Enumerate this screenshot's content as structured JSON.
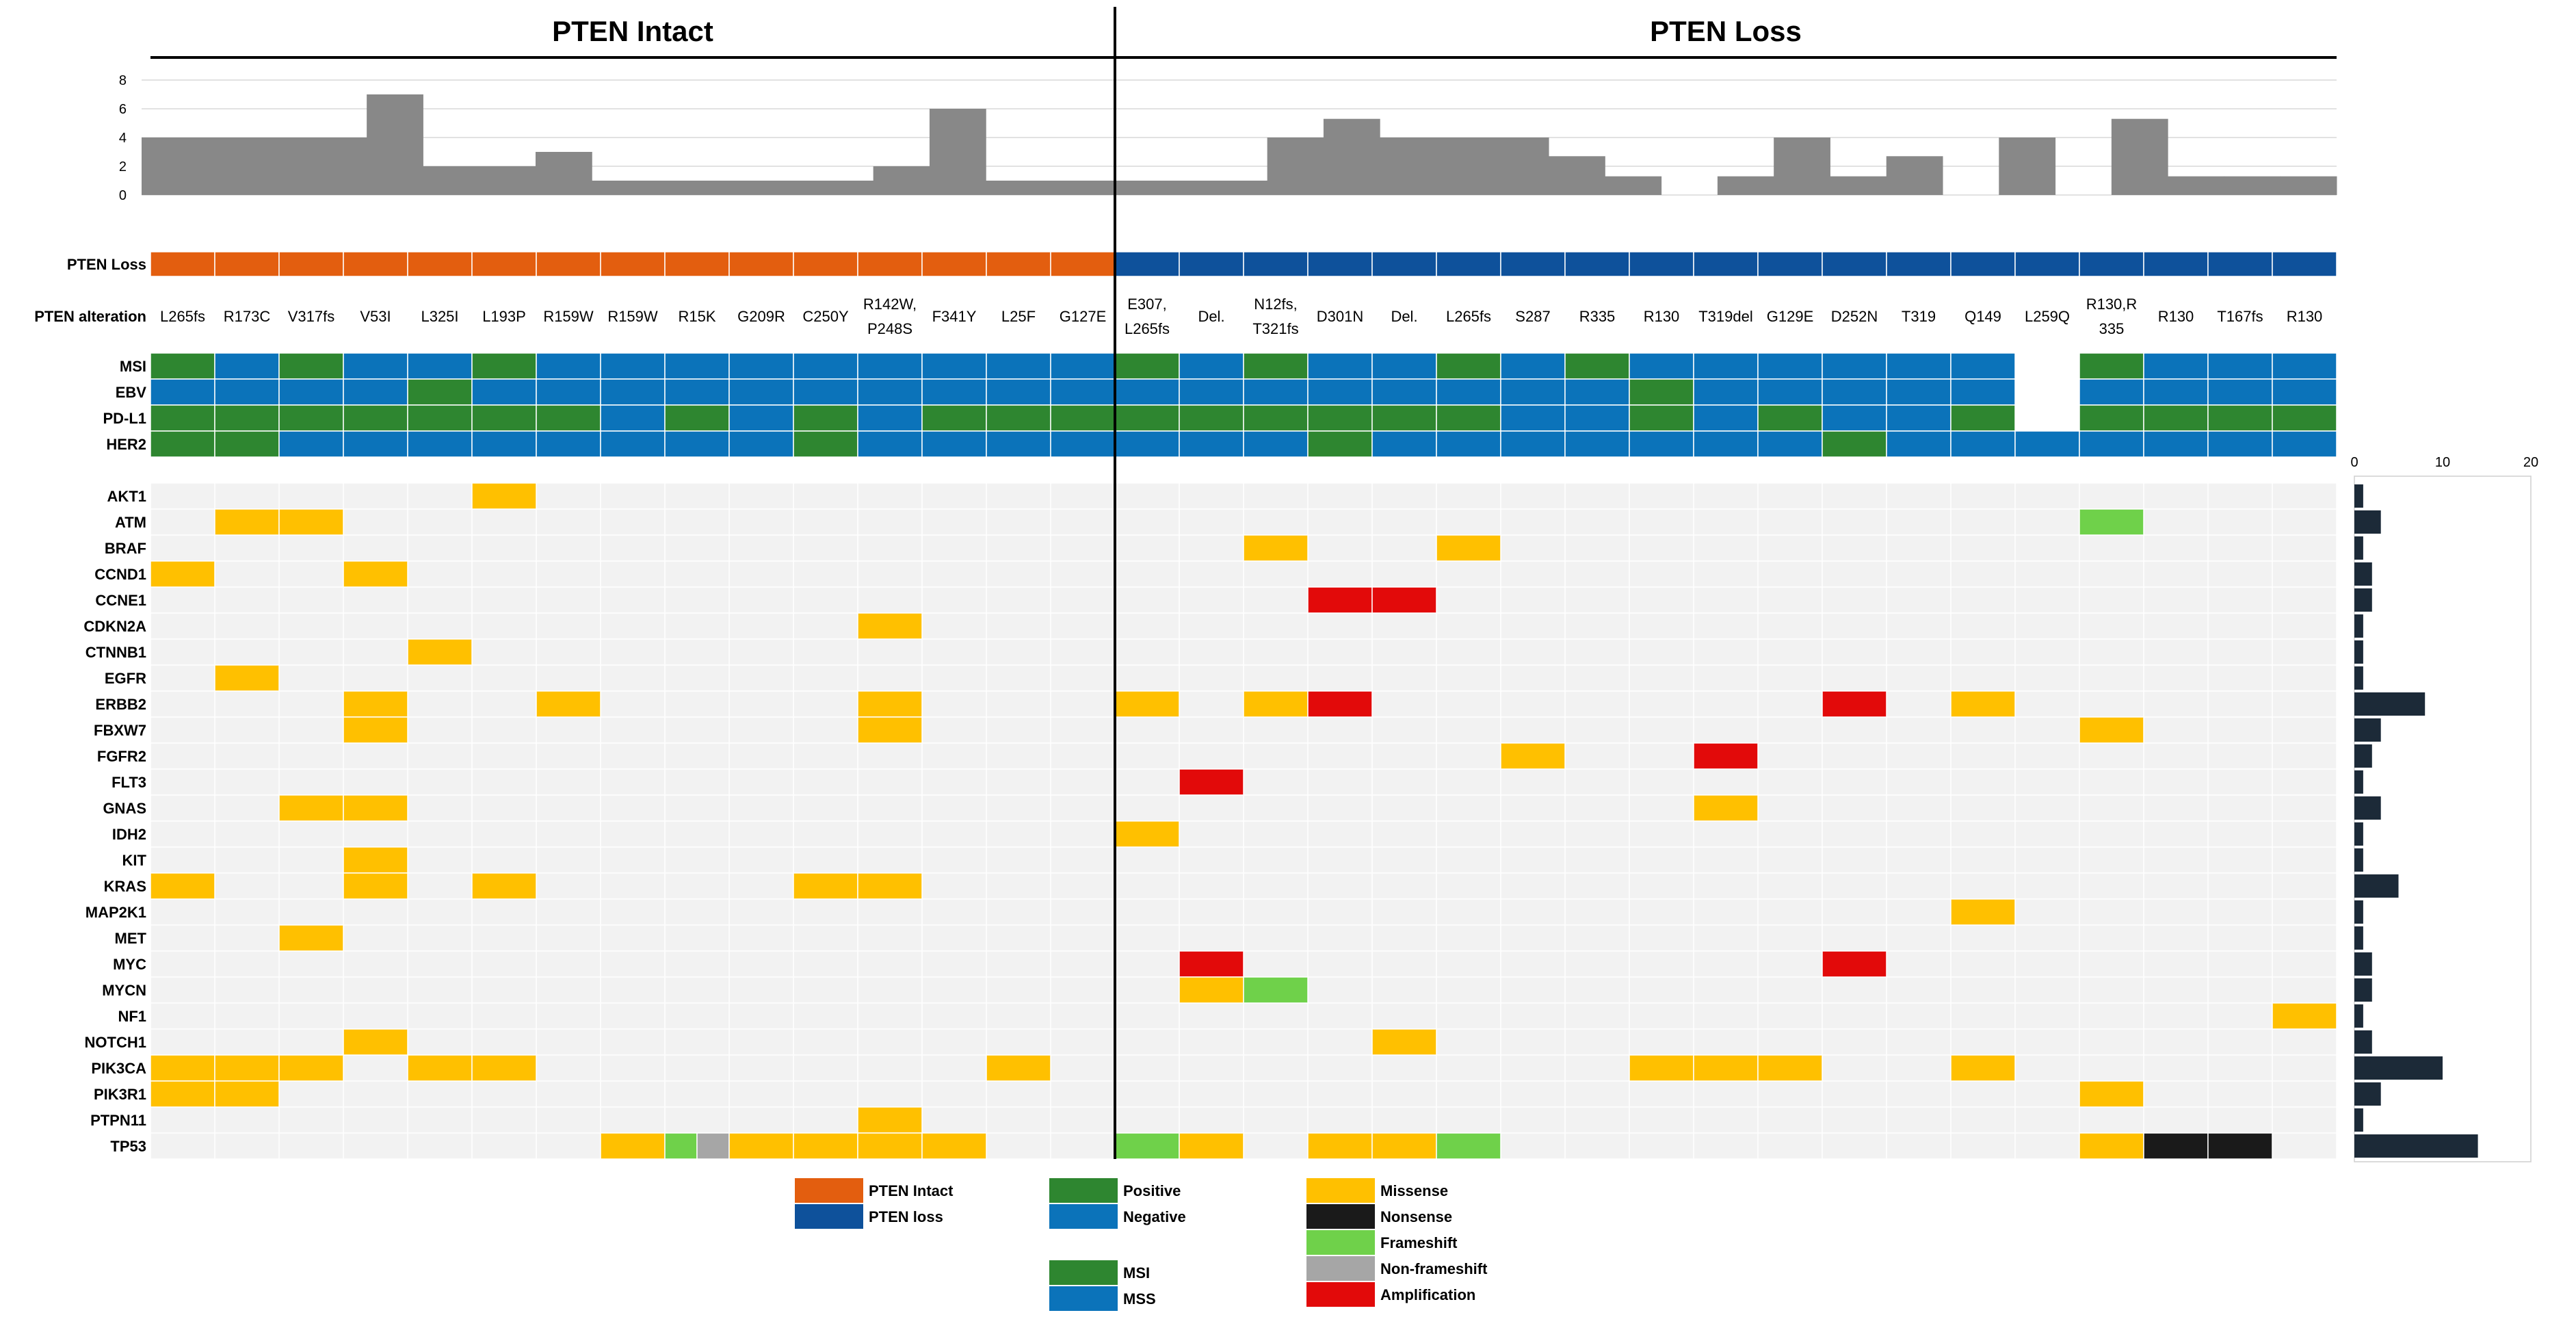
{
  "groups": [
    {
      "label": "PTEN Intact"
    },
    {
      "label": "PTEN Loss"
    }
  ],
  "colors": {
    "pten_intact": "#E35E0F",
    "pten_loss": "#0E519B",
    "positive": "#2E8630",
    "negative": "#0B73BA",
    "missense": "#FFC000",
    "nonsense": "#1A1A1A",
    "frameshift": "#6FD14A",
    "nonframeshift": "#A6A6A6",
    "amplification": "#E20A0A",
    "bg": "#F2F2F2",
    "bar": "#888888",
    "count_bar": "#1C2A38"
  },
  "chart_data": {
    "type": "heatmap",
    "title": "",
    "top_bar": {
      "ylim": [
        0,
        8
      ],
      "yticks": [
        "0",
        "2",
        "4",
        "6",
        "8"
      ],
      "values": [
        4,
        4,
        4,
        4,
        7,
        2,
        2,
        3,
        1,
        1,
        1,
        1,
        1,
        2,
        6,
        1,
        1,
        1,
        1,
        1,
        4,
        5.3,
        4,
        4,
        4,
        2.7,
        1.3,
        0,
        1.3,
        4,
        1.3,
        2.7,
        0,
        4,
        0,
        5.3,
        1.3,
        1.3,
        1.3
      ]
    },
    "row_labels": {
      "pten": "PTEN Loss",
      "alteration": "PTEN alteration",
      "msi": "MSI",
      "ebv": "EBV",
      "pdl1": "PD-L1",
      "her2": "HER2"
    },
    "pten_status": [
      "intact",
      "intact",
      "intact",
      "intact",
      "intact",
      "intact",
      "intact",
      "intact",
      "intact",
      "intact",
      "intact",
      "intact",
      "intact",
      "intact",
      "intact",
      "intact",
      "intact",
      "loss",
      "loss",
      "loss",
      "loss",
      "loss",
      "loss",
      "loss",
      "loss",
      "loss",
      "loss",
      "loss",
      "loss",
      "loss",
      "loss",
      "loss",
      "loss",
      "loss",
      "loss",
      "loss",
      "loss",
      "loss",
      "loss"
    ],
    "alterations": [
      [
        "L265fs"
      ],
      [
        "R173C"
      ],
      [
        "V317fs"
      ],
      [
        "V53I"
      ],
      [
        "L325I"
      ],
      [
        "L193P"
      ],
      [
        "R159W"
      ],
      [
        "R159W"
      ],
      [
        "R15K"
      ],
      [
        "G209R"
      ],
      [
        "C250Y"
      ],
      [
        "R142W,",
        "P248S"
      ],
      [
        "F341Y"
      ],
      [
        "L25F"
      ],
      [
        "G127E"
      ],
      [
        "E307,",
        "L265fs"
      ],
      [
        "Del."
      ],
      [
        "N12fs,",
        "T321fs"
      ],
      [
        "D301N"
      ],
      [
        "Del."
      ],
      [
        "L265fs"
      ],
      [
        "S287"
      ],
      [
        "R335"
      ],
      [
        "R130"
      ],
      [
        "T319del"
      ],
      [
        "G129E"
      ],
      [
        "D252N"
      ],
      [
        "T319"
      ],
      [
        "Q149"
      ],
      [
        "L259Q"
      ],
      [
        "R130,R",
        "335"
      ],
      [
        "R130"
      ],
      [
        "T167fs"
      ],
      [
        "R130"
      ]
    ],
    "alteration_cols": [
      0,
      1,
      2,
      3,
      4,
      5,
      6,
      7,
      8,
      9,
      10,
      11,
      12,
      13,
      14,
      15,
      16,
      17,
      18,
      19,
      20,
      21,
      22,
      23,
      24,
      25,
      26,
      27,
      28,
      29,
      30,
      31,
      32,
      33
    ],
    "msi": [
      "P",
      "N",
      "P",
      "N",
      "N",
      "P",
      "N",
      "N",
      "N",
      "N",
      "N",
      "N",
      "N",
      "N",
      "N",
      "P",
      "N",
      "P",
      "N",
      "N",
      "P",
      "N",
      "P",
      "N",
      "N",
      "N",
      "N",
      "N",
      "N",
      "X",
      "P",
      "N",
      "N",
      "N"
    ],
    "ebv": [
      "N",
      "N",
      "N",
      "N",
      "P",
      "N",
      "N",
      "N",
      "N",
      "N",
      "N",
      "N",
      "N",
      "N",
      "N",
      "N",
      "N",
      "N",
      "N",
      "N",
      "N",
      "N",
      "N",
      "P",
      "N",
      "N",
      "N",
      "N",
      "N",
      "X",
      "N",
      "N",
      "N",
      "N"
    ],
    "pdl1": [
      "P",
      "P",
      "P",
      "P",
      "P",
      "P",
      "P",
      "N",
      "P",
      "N",
      "P",
      "N",
      "P",
      "P",
      "P",
      "P",
      "P",
      "P",
      "P",
      "P",
      "P",
      "N",
      "N",
      "P",
      "N",
      "P",
      "N",
      "N",
      "P",
      "X",
      "P",
      "P",
      "P",
      "P"
    ],
    "her2": [
      "P",
      "P",
      "N",
      "N",
      "N",
      "N",
      "N",
      "N",
      "N",
      "N",
      "P",
      "N",
      "N",
      "N",
      "N",
      "N",
      "N",
      "N",
      "P",
      "N",
      "N",
      "N",
      "N",
      "N",
      "N",
      "N",
      "P",
      "N",
      "N",
      "N",
      "N",
      "N",
      "N",
      "N"
    ],
    "genes": [
      "AKT1",
      "ATM",
      "BRAF",
      "CCND1",
      "CCNE1",
      "CDKN2A",
      "CTNNB1",
      "EGFR",
      "ERBB2",
      "FBXW7",
      "FGFR2",
      "FLT3",
      "GNAS",
      "IDH2",
      "KIT",
      "KRAS",
      "MAP2K1",
      "MET",
      "MYC",
      "MYCN",
      "NF1",
      "NOTCH1",
      "PIK3CA",
      "PIK3R1",
      "PTPN11",
      "TP53"
    ],
    "gene_counts": [
      1,
      3,
      1,
      2,
      2,
      1,
      1,
      1,
      8,
      3,
      2,
      1,
      3,
      1,
      1,
      5,
      1,
      1,
      2,
      2,
      1,
      2,
      10,
      3,
      1,
      14
    ],
    "count_axis": {
      "ticks": [
        "0",
        "10",
        "20"
      ],
      "max": 20
    },
    "mutations": [
      [
        0,
        5,
        "M"
      ],
      [
        1,
        1,
        "M"
      ],
      [
        1,
        2,
        "M"
      ],
      [
        1,
        30,
        "F"
      ],
      [
        2,
        17,
        "M"
      ],
      [
        2,
        20,
        "M"
      ],
      [
        3,
        0,
        "M"
      ],
      [
        3,
        3,
        "M"
      ],
      [
        4,
        18,
        "A"
      ],
      [
        4,
        19,
        "A"
      ],
      [
        5,
        11,
        "M"
      ],
      [
        6,
        4,
        "M"
      ],
      [
        7,
        1,
        "M"
      ],
      [
        8,
        3,
        "M"
      ],
      [
        8,
        6,
        "M"
      ],
      [
        8,
        11,
        "M"
      ],
      [
        8,
        15,
        "M"
      ],
      [
        8,
        17,
        "M"
      ],
      [
        8,
        18,
        "A"
      ],
      [
        8,
        26,
        "A"
      ],
      [
        8,
        28,
        "M"
      ],
      [
        9,
        3,
        "M"
      ],
      [
        9,
        11,
        "M"
      ],
      [
        9,
        30,
        "M"
      ],
      [
        10,
        21,
        "M"
      ],
      [
        10,
        24,
        "A"
      ],
      [
        11,
        16,
        "A"
      ],
      [
        12,
        2,
        "M"
      ],
      [
        12,
        3,
        "M"
      ],
      [
        12,
        24,
        "M"
      ],
      [
        13,
        15,
        "M"
      ],
      [
        14,
        3,
        "M"
      ],
      [
        15,
        0,
        "M"
      ],
      [
        15,
        3,
        "M"
      ],
      [
        15,
        5,
        "M"
      ],
      [
        15,
        10,
        "M"
      ],
      [
        15,
        11,
        "M"
      ],
      [
        16,
        28,
        "M"
      ],
      [
        17,
        2,
        "M"
      ],
      [
        18,
        16,
        "A"
      ],
      [
        18,
        26,
        "A"
      ],
      [
        19,
        16,
        "M"
      ],
      [
        19,
        17,
        "F"
      ],
      [
        20,
        33,
        "M"
      ],
      [
        21,
        3,
        "M"
      ],
      [
        21,
        19,
        "M"
      ],
      [
        22,
        0,
        "M"
      ],
      [
        22,
        1,
        "M"
      ],
      [
        22,
        2,
        "M"
      ],
      [
        22,
        4,
        "M"
      ],
      [
        22,
        5,
        "M"
      ],
      [
        22,
        13,
        "M"
      ],
      [
        22,
        23,
        "M"
      ],
      [
        22,
        24,
        "M"
      ],
      [
        22,
        25,
        "M"
      ],
      [
        22,
        28,
        "M"
      ],
      [
        23,
        0,
        "M"
      ],
      [
        23,
        1,
        "M"
      ],
      [
        23,
        30,
        "M"
      ],
      [
        24,
        11,
        "M"
      ],
      [
        25,
        7,
        "M"
      ],
      [
        25,
        8,
        "F"
      ],
      [
        25,
        8.5,
        "N2"
      ],
      [
        25,
        9,
        "M"
      ],
      [
        25,
        10,
        "M"
      ],
      [
        25,
        11,
        "M"
      ],
      [
        25,
        12,
        "M"
      ],
      [
        25,
        15,
        "F"
      ],
      [
        25,
        16,
        "M"
      ],
      [
        25,
        18,
        "M"
      ],
      [
        25,
        19,
        "M"
      ],
      [
        25,
        20,
        "F"
      ],
      [
        25,
        30,
        "M"
      ],
      [
        25,
        31,
        "B"
      ],
      [
        25,
        32,
        "B"
      ]
    ]
  },
  "legend": {
    "pten": [
      {
        "label": "PTEN Intact",
        "color_key": "pten_intact"
      },
      {
        "label": "PTEN loss",
        "color_key": "pten_loss"
      }
    ],
    "status": [
      {
        "label": "Positive",
        "color_key": "positive"
      },
      {
        "label": "Negative",
        "color_key": "negative"
      }
    ],
    "msi": [
      {
        "label": "MSI",
        "color_key": "positive"
      },
      {
        "label": "MSS",
        "color_key": "negative"
      }
    ],
    "mutation": [
      {
        "label": "Missense",
        "color_key": "missense"
      },
      {
        "label": "Nonsense",
        "color_key": "nonsense"
      },
      {
        "label": "Frameshift",
        "color_key": "frameshift"
      },
      {
        "label": "Non-frameshift",
        "color_key": "nonframeshift"
      },
      {
        "label": "Amplification",
        "color_key": "amplification"
      }
    ]
  }
}
